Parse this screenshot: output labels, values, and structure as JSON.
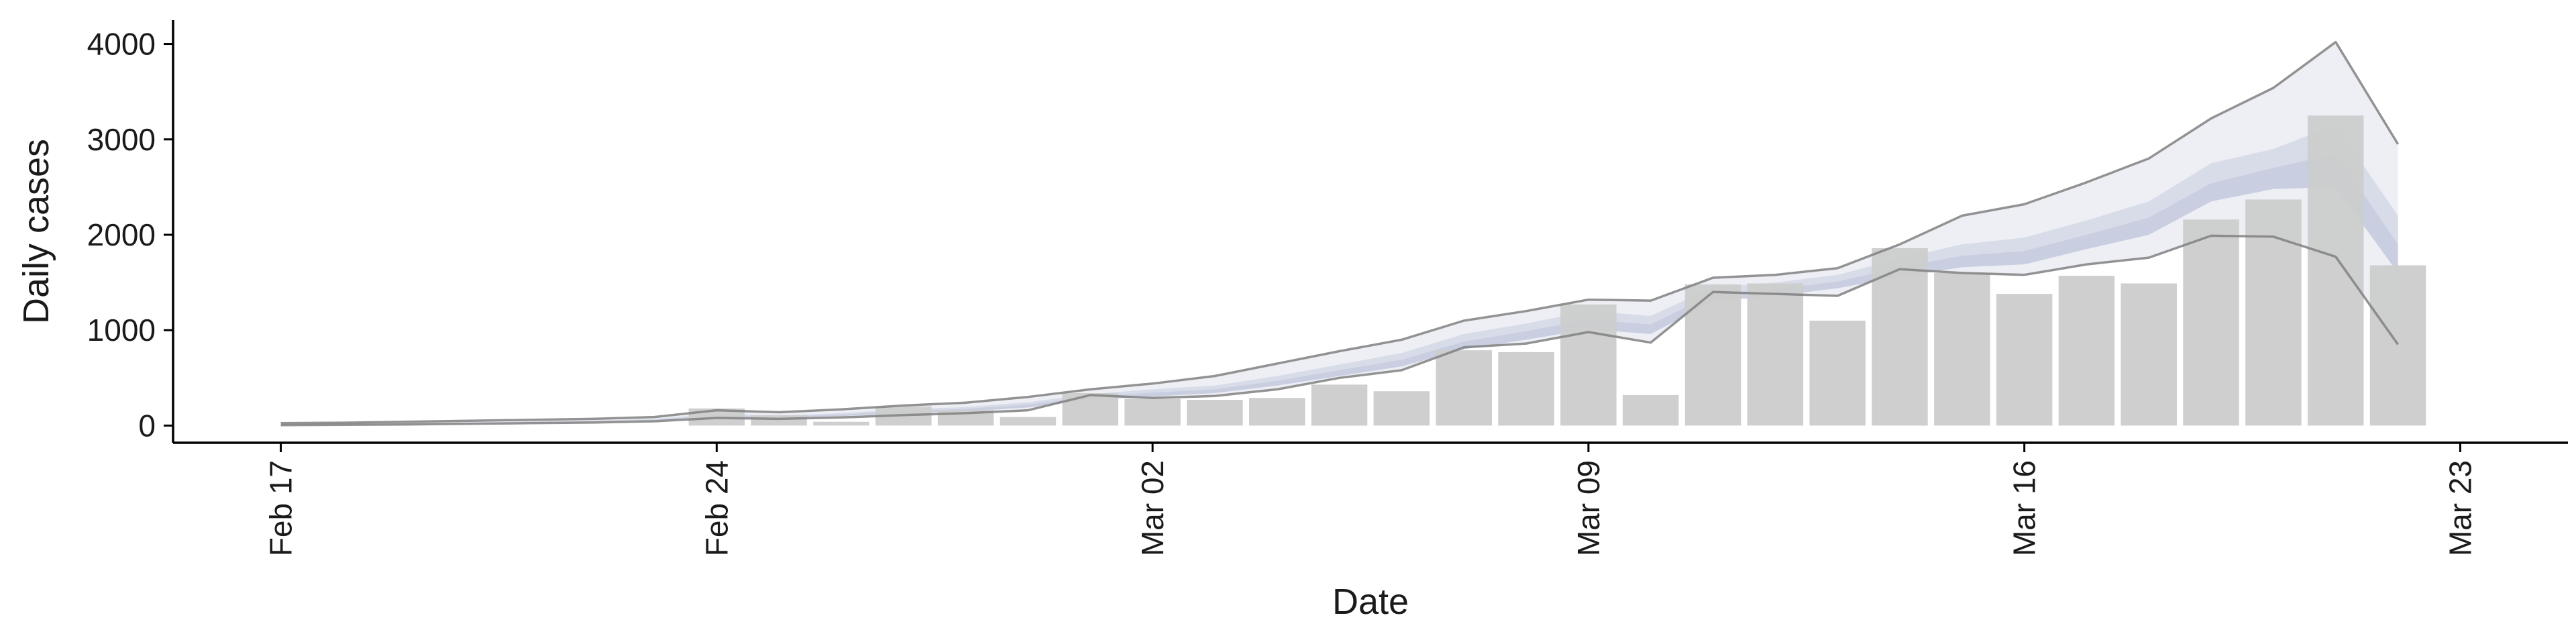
{
  "chart_data": {
    "type": "bar",
    "xlabel": "Date",
    "ylabel": "Daily cases",
    "ylim": [
      -180,
      4250
    ],
    "yticks": [
      0,
      1000,
      2000,
      3000,
      4000
    ],
    "xlim": [
      "2020-02-17",
      "2020-03-23"
    ],
    "xticks": [
      {
        "date": "2020-02-17",
        "label": "Feb 17"
      },
      {
        "date": "2020-02-24",
        "label": "Feb 24"
      },
      {
        "date": "2020-03-02",
        "label": "Mar 02"
      },
      {
        "date": "2020-03-09",
        "label": "Mar 09"
      },
      {
        "date": "2020-03-16",
        "label": "Mar 16"
      },
      {
        "date": "2020-03-23",
        "label": "Mar 23"
      }
    ],
    "grid": false,
    "legend": "none",
    "colors": {
      "bars": "#cccccc",
      "band_outer": "#dfe2ec",
      "band_mid": "#cfd4e3",
      "band_inner": "#b7bfd6",
      "line": "#808080"
    },
    "bars": {
      "dates": [
        "2020-02-24",
        "2020-02-25",
        "2020-02-26",
        "2020-02-27",
        "2020-02-28",
        "2020-02-29",
        "2020-03-01",
        "2020-03-02",
        "2020-03-03",
        "2020-03-04",
        "2020-03-05",
        "2020-03-06",
        "2020-03-07",
        "2020-03-08",
        "2020-03-09",
        "2020-03-10",
        "2020-03-11",
        "2020-03-12",
        "2020-03-13",
        "2020-03-14",
        "2020-03-15",
        "2020-03-16",
        "2020-03-17",
        "2020-03-18",
        "2020-03-19",
        "2020-03-20",
        "2020-03-21",
        "2020-03-22"
      ],
      "values": [
        180,
        110,
        40,
        200,
        160,
        90,
        340,
        280,
        270,
        290,
        430,
        360,
        790,
        770,
        1270,
        320,
        1480,
        1490,
        1100,
        1860,
        1600,
        1380,
        1570,
        1490,
        2160,
        2370,
        3250,
        1680
      ]
    },
    "band": {
      "dates": [
        "2020-02-17",
        "2020-02-18",
        "2020-02-19",
        "2020-02-20",
        "2020-02-21",
        "2020-02-22",
        "2020-02-23",
        "2020-02-24",
        "2020-02-25",
        "2020-02-26",
        "2020-02-27",
        "2020-02-28",
        "2020-02-29",
        "2020-03-01",
        "2020-03-02",
        "2020-03-03",
        "2020-03-04",
        "2020-03-05",
        "2020-03-06",
        "2020-03-07",
        "2020-03-08",
        "2020-03-09",
        "2020-03-10",
        "2020-03-11",
        "2020-03-12",
        "2020-03-13",
        "2020-03-14",
        "2020-03-15",
        "2020-03-16",
        "2020-03-17",
        "2020-03-18",
        "2020-03-19",
        "2020-03-20",
        "2020-03-21",
        "2020-03-22"
      ],
      "upper": [
        25,
        30,
        40,
        50,
        60,
        70,
        90,
        160,
        140,
        170,
        210,
        240,
        300,
        380,
        440,
        520,
        650,
        780,
        900,
        1100,
        1200,
        1320,
        1310,
        1550,
        1580,
        1650,
        1900,
        2200,
        2320,
        2550,
        2800,
        3220,
        3540,
        4020,
        2950
      ],
      "mid_upper": [
        15,
        20,
        25,
        32,
        42,
        52,
        70,
        120,
        105,
        130,
        170,
        195,
        245,
        330,
        380,
        420,
        520,
        640,
        760,
        960,
        1070,
        1200,
        1150,
        1450,
        1500,
        1580,
        1750,
        1900,
        1970,
        2150,
        2350,
        2750,
        2900,
        3150,
        2200
      ],
      "median": [
        12,
        15,
        20,
        27,
        35,
        45,
        60,
        110,
        95,
        115,
        150,
        175,
        220,
        300,
        345,
        380,
        470,
        580,
        690,
        880,
        990,
        1110,
        1060,
        1380,
        1430,
        1510,
        1660,
        1780,
        1830,
        2000,
        2180,
        2540,
        2700,
        2850,
        1900
      ],
      "mid_lower": [
        10,
        12,
        16,
        22,
        30,
        38,
        52,
        95,
        82,
        100,
        130,
        150,
        190,
        270,
        305,
        340,
        420,
        520,
        620,
        800,
        900,
        1010,
        960,
        1300,
        1360,
        1440,
        1560,
        1660,
        1690,
        1850,
        2000,
        2350,
        2480,
        2500,
        1600
      ],
      "lower": [
        5,
        8,
        12,
        18,
        25,
        32,
        45,
        80,
        70,
        85,
        110,
        130,
        160,
        320,
        290,
        310,
        380,
        500,
        580,
        820,
        860,
        980,
        870,
        1400,
        1380,
        1360,
        1640,
        1600,
        1580,
        1690,
        1760,
        1990,
        1980,
        1770,
        850
      ]
    }
  }
}
